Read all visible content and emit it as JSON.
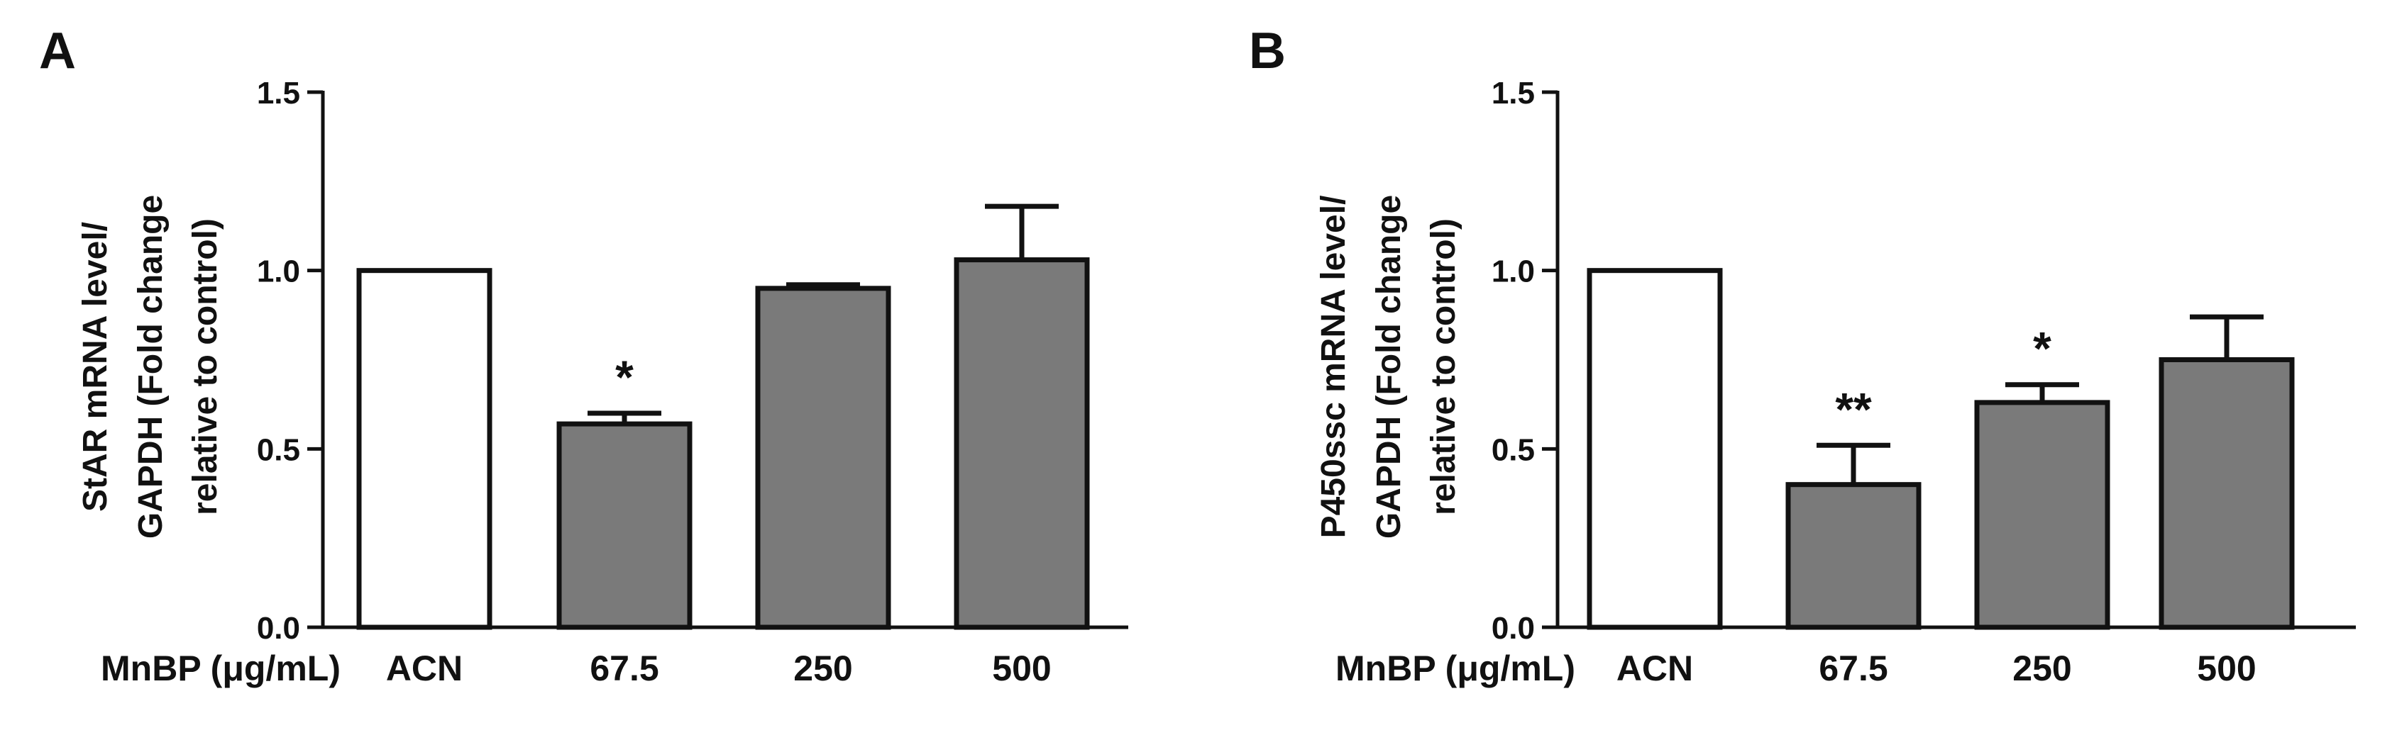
{
  "chart_data": [
    {
      "panel_label": "A",
      "type": "bar",
      "ylabel_lines": [
        "StAR mRNA level/",
        "GAPDH (Fold change",
        "relative to control)"
      ],
      "xlabel": "MnBP (μg/mL)",
      "categories": [
        "ACN",
        "67.5",
        "250",
        "500"
      ],
      "values": [
        1.0,
        0.57,
        0.95,
        1.03
      ],
      "error": [
        0.0,
        0.03,
        0.01,
        0.15
      ],
      "annotations": [
        "",
        "*",
        "",
        ""
      ],
      "ylim": [
        0,
        1.5
      ],
      "yticks": [
        "0.0",
        "0.5",
        "1.0",
        "1.5"
      ],
      "bar_colors": [
        "#ffffff",
        "#7a7a7a",
        "#7a7a7a",
        "#7a7a7a"
      ]
    },
    {
      "panel_label": "B",
      "type": "bar",
      "ylabel_lines": [
        "P450ssc mRNA level/",
        "GAPDH (Fold change",
        "relative to control)"
      ],
      "xlabel": "MnBP (μg/mL)",
      "categories": [
        "ACN",
        "67.5",
        "250",
        "500"
      ],
      "values": [
        1.0,
        0.4,
        0.63,
        0.75
      ],
      "error": [
        0.0,
        0.11,
        0.05,
        0.12
      ],
      "annotations": [
        "",
        "**",
        "*",
        ""
      ],
      "ylim": [
        0,
        1.5
      ],
      "yticks": [
        "0.0",
        "0.5",
        "1.0",
        "1.5"
      ],
      "bar_colors": [
        "#ffffff",
        "#7a7a7a",
        "#7a7a7a",
        "#7a7a7a"
      ]
    }
  ]
}
